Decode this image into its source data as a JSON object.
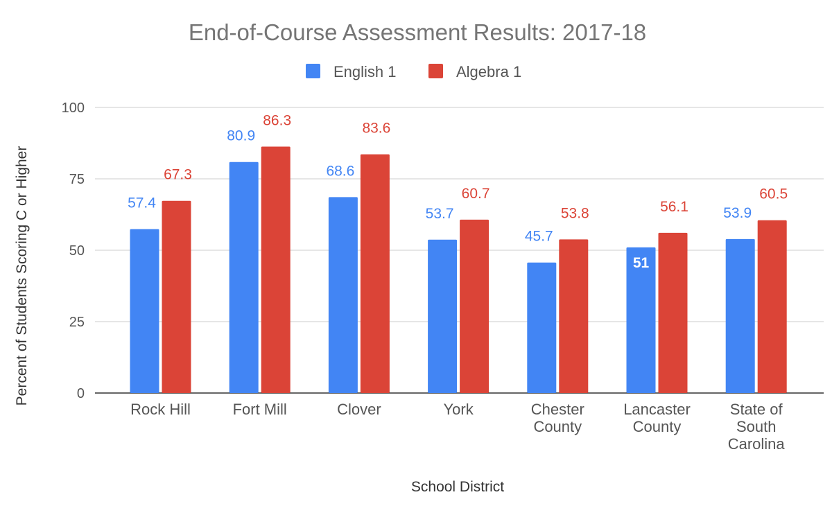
{
  "chart_data": {
    "type": "bar",
    "title": "End-of-Course Assessment Results: 2017-18",
    "xlabel": "School District",
    "ylabel": "Percent of Students Scoring C or Higher",
    "ylim": [
      0,
      100
    ],
    "yticks": [
      0,
      25,
      50,
      75,
      100
    ],
    "categories": [
      [
        "Rock Hill"
      ],
      [
        "Fort Mill"
      ],
      [
        "Clover"
      ],
      [
        "York"
      ],
      [
        "Chester",
        "County"
      ],
      [
        "Lancaster",
        "County"
      ],
      [
        "State of",
        "South",
        "Carolina"
      ]
    ],
    "series": [
      {
        "name": "English 1",
        "color": "#4285f4",
        "values": [
          57.4,
          80.9,
          68.6,
          53.7,
          45.7,
          51,
          53.9
        ]
      },
      {
        "name": "Algebra 1",
        "color": "#db4437",
        "values": [
          67.3,
          86.3,
          83.6,
          60.7,
          53.8,
          56.1,
          60.5
        ]
      }
    ],
    "legend_position": "top",
    "grid": true
  }
}
